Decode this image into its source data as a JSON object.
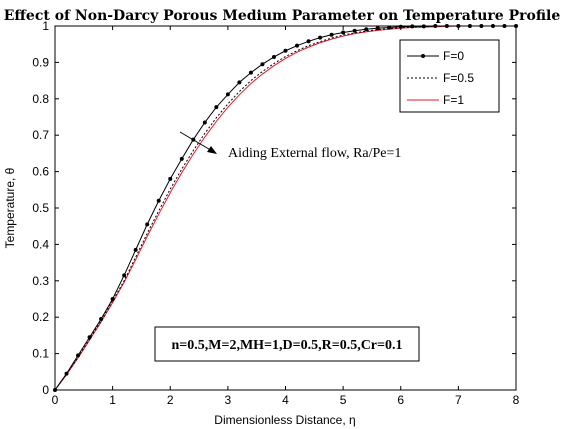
{
  "chart_data": {
    "type": "line",
    "title": "Effect of Non-Darcy Porous Medium Parameter on Temperature Profile",
    "xlabel": "Dimensionless Distance, η",
    "ylabel": "Temperature, θ",
    "xlim": [
      0,
      8
    ],
    "ylim": [
      0,
      1
    ],
    "xticks": [
      "0",
      "1",
      "2",
      "3",
      "4",
      "5",
      "6",
      "7",
      "8"
    ],
    "yticks": [
      "0",
      "0.1",
      "0.2",
      "0.3",
      "0.4",
      "0.5",
      "0.6",
      "0.7",
      "0.8",
      "0.9",
      "1"
    ],
    "grid": false,
    "legend_position": "top-right",
    "x": [
      0,
      0.2,
      0.4,
      0.6,
      0.8,
      1.0,
      1.2,
      1.4,
      1.6,
      1.8,
      2.0,
      2.2,
      2.4,
      2.6,
      2.8,
      3.0,
      3.2,
      3.4,
      3.6,
      3.8,
      4.0,
      4.2,
      4.4,
      4.6,
      4.8,
      5.0,
      5.2,
      5.4,
      5.6,
      5.8,
      6.0,
      6.2,
      6.4,
      6.6,
      6.8,
      7.0,
      7.2,
      7.4,
      7.6,
      7.8,
      8.0
    ],
    "series": [
      {
        "name": "F=0",
        "color": "#000000",
        "style": "solid-marker",
        "values": [
          0.0,
          0.045,
          0.095,
          0.145,
          0.195,
          0.25,
          0.315,
          0.385,
          0.455,
          0.52,
          0.58,
          0.635,
          0.688,
          0.735,
          0.777,
          0.812,
          0.845,
          0.872,
          0.895,
          0.915,
          0.932,
          0.946,
          0.958,
          0.968,
          0.976,
          0.982,
          0.987,
          0.991,
          0.994,
          0.996,
          0.998,
          0.999,
          0.999,
          1.0,
          1.0,
          1.0,
          1.0,
          1.0,
          1.0,
          1.0,
          1.0
        ]
      },
      {
        "name": "F=0.5",
        "color": "#000000",
        "style": "dashed",
        "values": [
          0.0,
          0.043,
          0.09,
          0.14,
          0.19,
          0.245,
          0.3,
          0.365,
          0.43,
          0.492,
          0.552,
          0.607,
          0.658,
          0.705,
          0.748,
          0.786,
          0.82,
          0.85,
          0.875,
          0.897,
          0.916,
          0.932,
          0.946,
          0.957,
          0.967,
          0.975,
          0.981,
          0.986,
          0.99,
          0.993,
          0.995,
          0.997,
          0.998,
          0.999,
          1.0,
          1.0,
          1.0,
          1.0,
          1.0,
          1.0,
          1.0
        ]
      },
      {
        "name": "F=1",
        "color": "#e8192c",
        "style": "solid",
        "values": [
          0.0,
          0.042,
          0.088,
          0.137,
          0.187,
          0.24,
          0.296,
          0.358,
          0.422,
          0.483,
          0.542,
          0.597,
          0.648,
          0.695,
          0.738,
          0.777,
          0.811,
          0.842,
          0.868,
          0.891,
          0.911,
          0.928,
          0.942,
          0.954,
          0.964,
          0.972,
          0.979,
          0.984,
          0.988,
          0.991,
          0.994,
          0.996,
          0.997,
          0.998,
          0.999,
          1.0,
          1.0,
          1.0,
          1.0,
          1.0,
          1.0
        ]
      }
    ],
    "annotations": {
      "arrow_text": "Aiding External flow, Ra/Pe=1",
      "params_box": "n=0.5,M=2,MH=1,D=0.5,R=0.5,Cr=0.1"
    }
  }
}
